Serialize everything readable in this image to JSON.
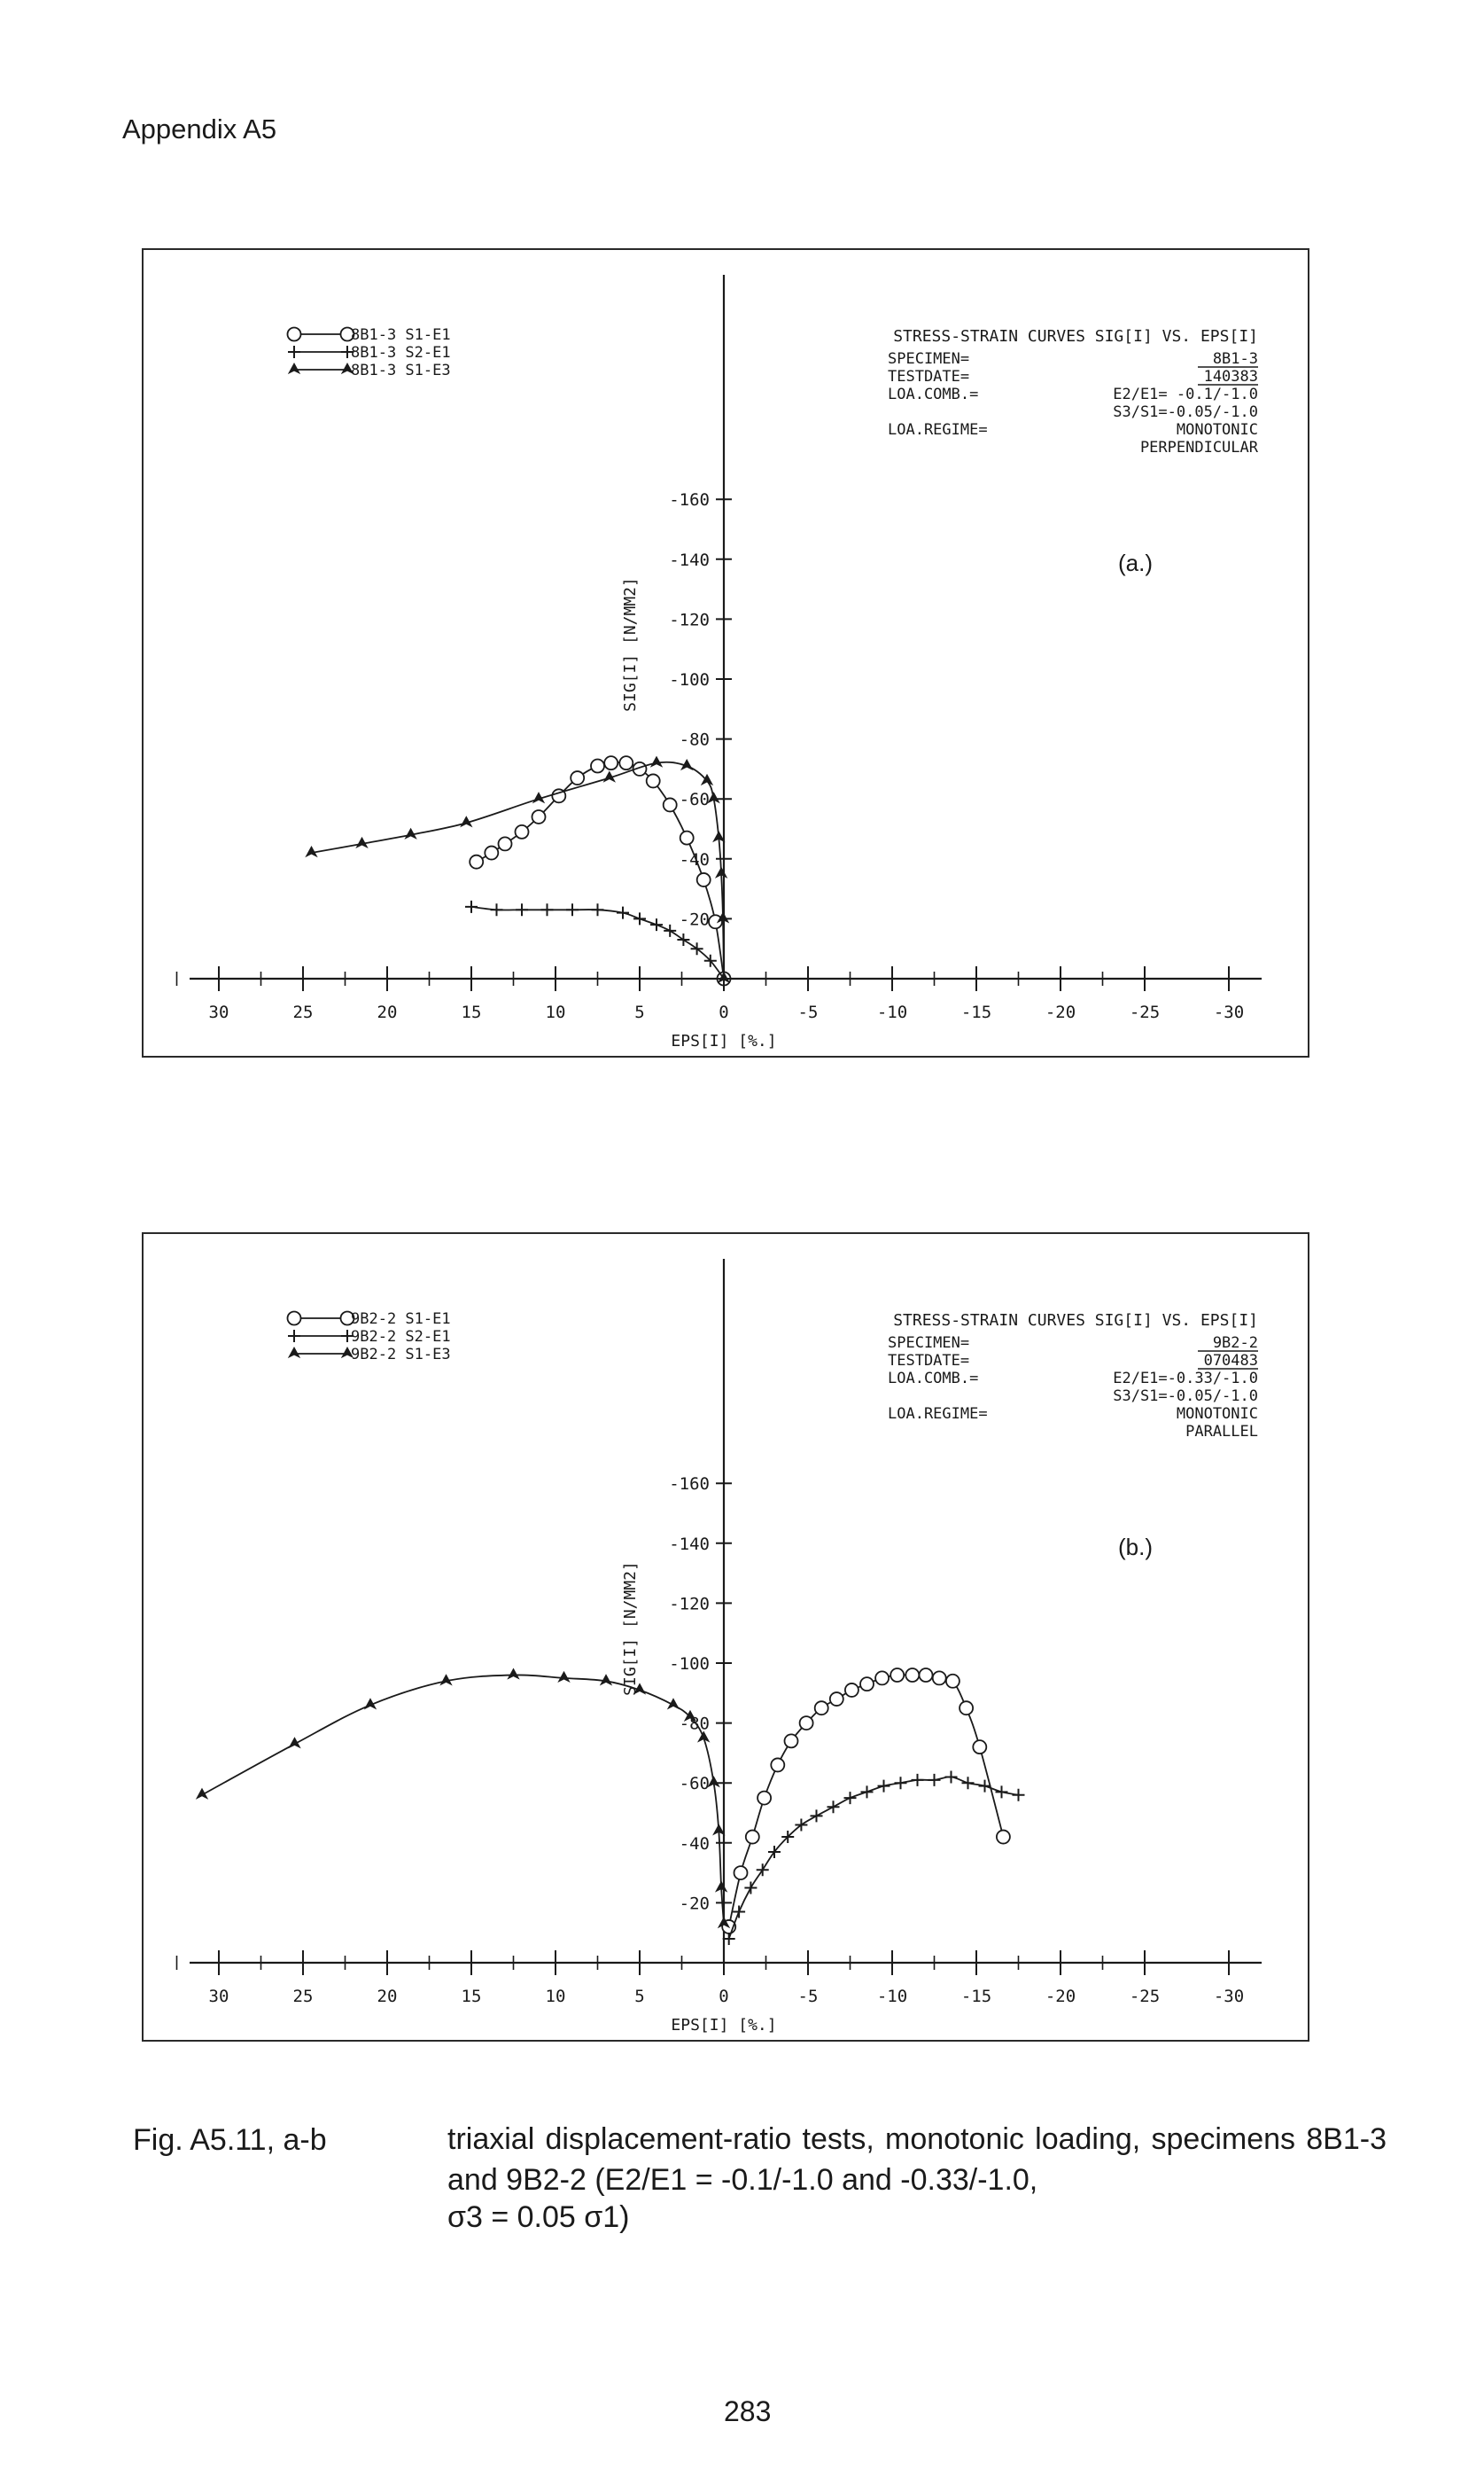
{
  "header": {
    "text": "Appendix A5"
  },
  "caption": {
    "label": "Fig. A5.11, a-b",
    "text": "triaxial displacement-ratio tests, monotonic loading, specimens 8B1-3 and 9B2-2 (E2/E1 = -0.1/-1.0 and -0.33/-1.0,",
    "equation": "σ3 = 0.05 σ1)"
  },
  "page_number": "283",
  "chart_data": [
    {
      "type": "line",
      "panel_label": "(a.)",
      "title": "STRESS-STRAIN CURVES SIG[I] VS. EPS[I]",
      "xlabel": "EPS[I] [%.]",
      "ylabel": "SIG[I] [N/MM2]",
      "xlim": [
        30,
        -30
      ],
      "ylim": [
        0,
        -160
      ],
      "x_ticks": [
        "30",
        "25",
        "20",
        "15",
        "10",
        "5",
        "0",
        "-5",
        "-10",
        "-15",
        "-20",
        "-25",
        "-30"
      ],
      "y_ticks": [
        "-160",
        "-140",
        "-120",
        "-100",
        "-80",
        "-60",
        "-40",
        "-20"
      ],
      "info": [
        {
          "key": "SPECIMEN=",
          "value": "8B1-3"
        },
        {
          "key": "TESTDATE=",
          "value": "140383"
        },
        {
          "key": "LOA.COMB.=",
          "value": "E2/E1= -0.1/-1.0"
        },
        {
          "key": "",
          "value": "S3/S1=-0.05/-1.0"
        },
        {
          "key": "LOA.REGIME=",
          "value": "MONOTONIC"
        },
        {
          "key": "",
          "value": "PERPENDICULAR"
        }
      ],
      "legend_position": "top-left",
      "series": [
        {
          "name": "8B1-3 S1-E1",
          "marker": "circle",
          "x": [
            0,
            0.5,
            1.2,
            2.2,
            3.2,
            4.2,
            5.0,
            5.8,
            6.7,
            7.5,
            8.7,
            9.8,
            11.0,
            12.0,
            13.0,
            13.8,
            14.7
          ],
          "y": [
            0,
            -19,
            -33,
            -47,
            -58,
            -66,
            -70,
            -72,
            -72,
            -71,
            -67,
            -61,
            -54,
            -49,
            -45,
            -42,
            -39
          ]
        },
        {
          "name": "8B1-3 S2-E1",
          "marker": "plus",
          "x": [
            0,
            0.8,
            1.6,
            2.4,
            3.2,
            4.0,
            5.0,
            6.0,
            7.5,
            9.0,
            10.5,
            12.0,
            13.5,
            15.0
          ],
          "y": [
            0,
            -6,
            -10,
            -13,
            -16,
            -18,
            -20,
            -22,
            -23,
            -23,
            -23,
            -23,
            -23,
            -24
          ]
        },
        {
          "name": "8B1-3 S1-E3",
          "marker": "arrow",
          "x": [
            0,
            0.05,
            0.15,
            0.3,
            0.6,
            1.0,
            2.2,
            4.0,
            6.8,
            11.0,
            15.3,
            18.6,
            21.5,
            24.5
          ],
          "y": [
            0,
            -20,
            -35,
            -47,
            -60,
            -66,
            -71,
            -72,
            -67,
            -60,
            -52,
            -48,
            -45,
            -42
          ]
        }
      ]
    },
    {
      "type": "line",
      "panel_label": "(b.)",
      "title": "STRESS-STRAIN CURVES SIG[I] VS. EPS[I]",
      "xlabel": "EPS[I] [%.]",
      "ylabel": "SIG[I] [N/MM2]",
      "xlim": [
        30,
        -30
      ],
      "ylim": [
        0,
        -160
      ],
      "x_ticks": [
        "30",
        "25",
        "20",
        "15",
        "10",
        "5",
        "0",
        "-5",
        "-10",
        "-15",
        "-20",
        "-25",
        "-30"
      ],
      "y_ticks": [
        "-160",
        "-140",
        "-120",
        "-100",
        "-80",
        "-60",
        "-40",
        "-20"
      ],
      "info": [
        {
          "key": "SPECIMEN=",
          "value": "9B2-2"
        },
        {
          "key": "TESTDATE=",
          "value": "070483"
        },
        {
          "key": "LOA.COMB.=",
          "value": "E2/E1=-0.33/-1.0"
        },
        {
          "key": "",
          "value": "S3/S1=-0.05/-1.0"
        },
        {
          "key": "LOA.REGIME=",
          "value": "MONOTONIC"
        },
        {
          "key": "",
          "value": "PARALLEL"
        }
      ],
      "legend_position": "top-left",
      "series": [
        {
          "name": "9B2-2 S1-E1",
          "marker": "circle",
          "x": [
            -0.3,
            -1.0,
            -1.7,
            -2.4,
            -3.2,
            -4.0,
            -4.9,
            -5.8,
            -6.7,
            -7.6,
            -8.5,
            -9.4,
            -10.3,
            -11.2,
            -12.0,
            -12.8,
            -13.6,
            -14.4,
            -15.2,
            -16.6
          ],
          "y": [
            -12,
            -30,
            -42,
            -55,
            -66,
            -74,
            -80,
            -85,
            -88,
            -91,
            -93,
            -95,
            -96,
            -96,
            -96,
            -95,
            -94,
            -85,
            -72,
            -42
          ]
        },
        {
          "name": "9B2-2 S2-E1",
          "marker": "plus",
          "x": [
            -0.3,
            -0.9,
            -1.6,
            -2.3,
            -3.0,
            -3.8,
            -4.6,
            -5.5,
            -6.5,
            -7.5,
            -8.5,
            -9.5,
            -10.5,
            -11.5,
            -12.5,
            -13.5,
            -14.5,
            -15.5,
            -16.5,
            -17.5
          ],
          "y": [
            -8,
            -17,
            -25,
            -31,
            -37,
            -42,
            -46,
            -49,
            -52,
            -55,
            -57,
            -59,
            -60,
            -61,
            -61,
            -62,
            -60,
            -59,
            -57,
            -56
          ]
        },
        {
          "name": "9B2-2 S1-E3",
          "marker": "arrow",
          "x": [
            0,
            0.15,
            0.3,
            0.6,
            1.2,
            2.0,
            3.0,
            5.0,
            7.0,
            9.5,
            12.5,
            16.5,
            21.0,
            25.5,
            31.0
          ],
          "y": [
            -13,
            -25,
            -44,
            -60,
            -75,
            -82,
            -86,
            -91,
            -94,
            -95,
            -96,
            -94,
            -86,
            -73,
            -56
          ]
        }
      ]
    }
  ]
}
